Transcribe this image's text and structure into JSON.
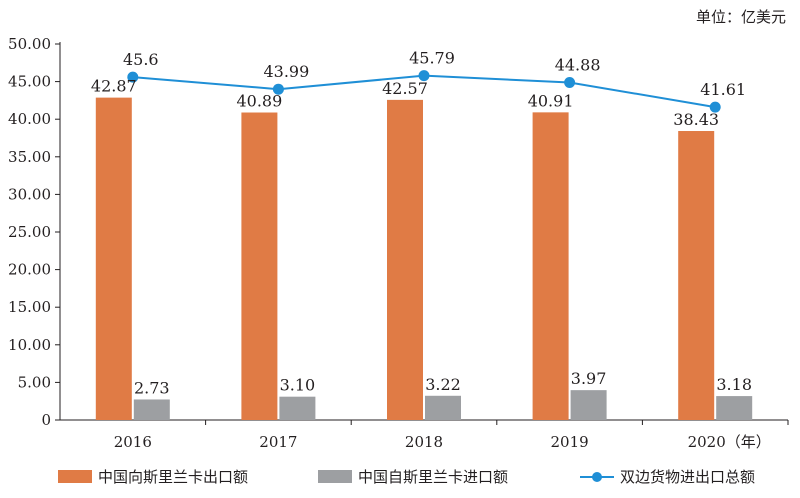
{
  "unit_label": "单位：亿美元",
  "chart_data": {
    "type": "bar",
    "categories": [
      "2016",
      "2017",
      "2018",
      "2019",
      "2020（年）"
    ],
    "series": [
      {
        "name": "中国向斯里兰卡出口额",
        "type": "bar",
        "color": "#e07b45",
        "values": [
          42.87,
          40.89,
          42.57,
          40.91,
          38.43
        ]
      },
      {
        "name": "中国自斯里兰卡进口额",
        "type": "bar",
        "color": "#9d9fa2",
        "values": [
          2.73,
          3.1,
          3.22,
          3.97,
          3.18
        ]
      },
      {
        "name": "双边货物进出口总额",
        "type": "line",
        "color": "#1f8fd6",
        "values": [
          45.6,
          43.99,
          45.79,
          44.88,
          41.61
        ]
      }
    ],
    "value_labels": [
      [
        "42.87",
        "40.89",
        "42.57",
        "40.91",
        "38.43"
      ],
      [
        "2.73",
        "3.10",
        "3.22",
        "3.97",
        "3.18"
      ],
      [
        "45.6",
        "43.99",
        "45.79",
        "44.88",
        "41.61"
      ]
    ],
    "y_ticks": [
      "0",
      "5.00",
      "10.00",
      "15.00",
      "20.00",
      "25.00",
      "30.00",
      "35.00",
      "40.00",
      "45.00",
      "50.00"
    ],
    "ylim": [
      0,
      50
    ],
    "legend_position": "bottom",
    "grid": false
  },
  "legend": {
    "items": [
      "中国向斯里兰卡出口额",
      "中国自斯里兰卡进口额",
      "双边货物进出口总额"
    ]
  }
}
